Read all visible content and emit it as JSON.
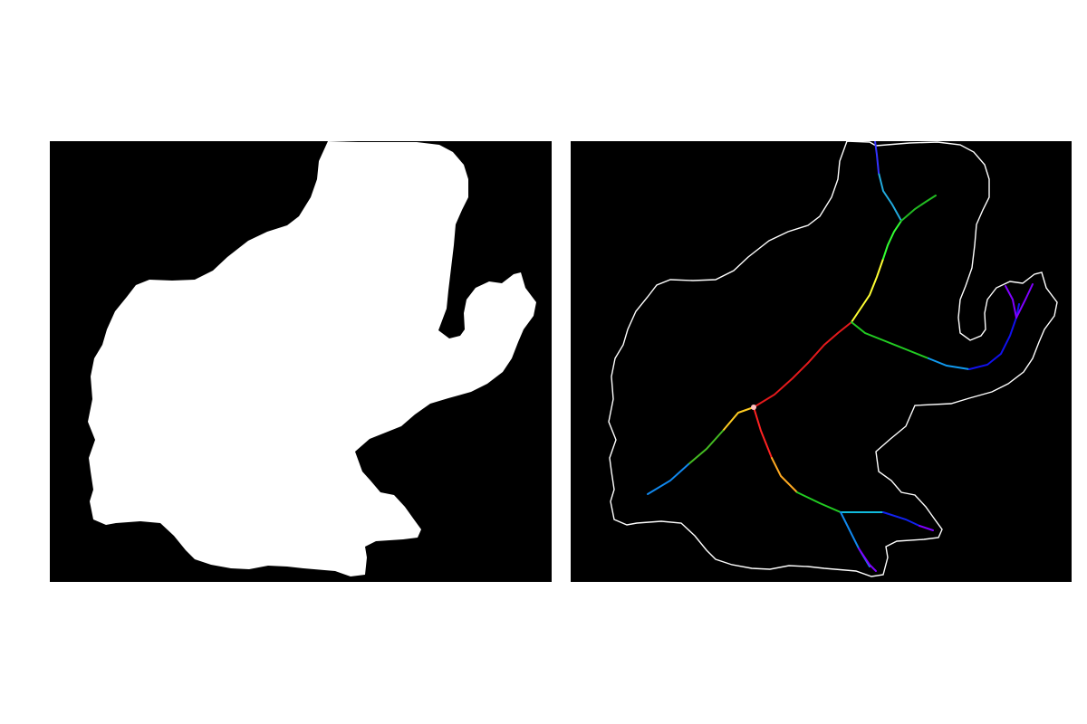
{
  "figure": {
    "background": "#ffffff",
    "panel_background": "#000000",
    "panels": [
      {
        "name": "binary-mask",
        "description_shape": "silhouette",
        "fill_color": "#ffffff"
      },
      {
        "name": "skeleton-overlay",
        "outline_color": "#ffffff",
        "branch_colormap": [
          "#ff0000",
          "#ffff00",
          "#00ff00",
          "#00ffff",
          "#0000ff",
          "#8000ff"
        ],
        "junction_color": "#ffc0c0"
      }
    ]
  }
}
